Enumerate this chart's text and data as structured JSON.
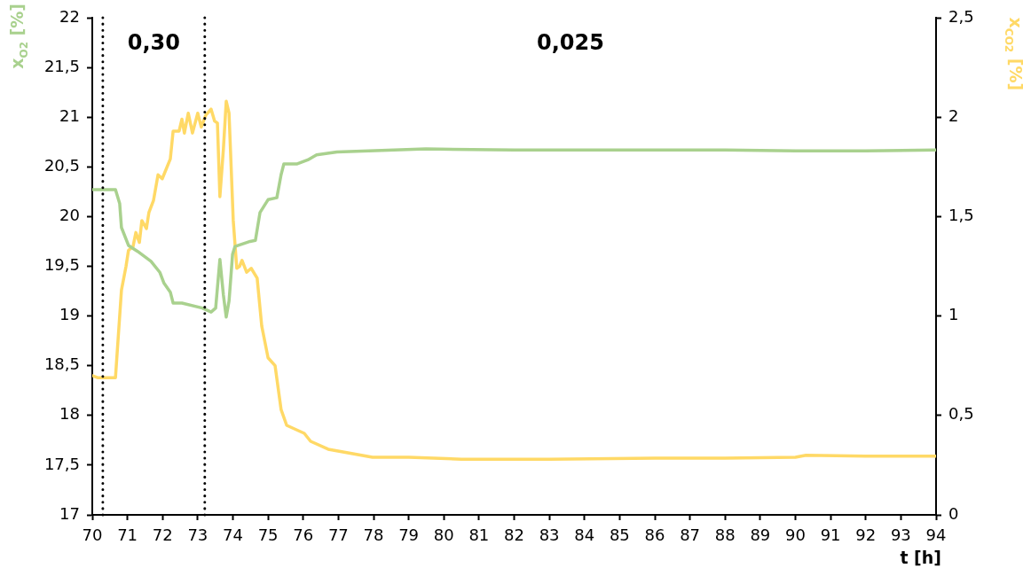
{
  "chart_data": {
    "type": "line",
    "xlabel": "t [h]",
    "ylabel": "x$_{O2}$ [%]",
    "y2label": "x$_{CO2}$ [%]",
    "xlim": [
      70,
      94
    ],
    "xticks": [
      70,
      71,
      72,
      73,
      74,
      75,
      76,
      77,
      78,
      79,
      80,
      81,
      82,
      83,
      84,
      85,
      86,
      87,
      88,
      89,
      90,
      91,
      92,
      93,
      94
    ],
    "ylim": [
      17,
      22
    ],
    "yticks": [
      17,
      {
        "value": 17.5,
        "label": "17,5"
      },
      18,
      {
        "value": 18.5,
        "label": "18,5"
      },
      19,
      {
        "value": 19.5,
        "label": "19,5"
      },
      20,
      {
        "value": 20.5,
        "label": "20,5"
      },
      21,
      {
        "value": 21.5,
        "label": "21,5"
      },
      22
    ],
    "y2lim": [
      0,
      2.5
    ],
    "y2ticks": [
      0,
      {
        "value": 0.5,
        "label": "0,5"
      },
      1,
      {
        "value": 1.5,
        "label": "1,5"
      },
      2,
      {
        "value": 2.5,
        "label": "2,5"
      }
    ],
    "grid": false,
    "legend": false,
    "marker": "none",
    "line_style": "solid",
    "ref_lines": [
      {
        "axis": "x",
        "value": 70.3,
        "color": "#000000",
        "line_style": "dotted"
      },
      {
        "axis": "x",
        "value": 73.2,
        "color": "#000000",
        "line_style": "dotted"
      }
    ],
    "annotations": [
      "0,30",
      "0,025"
    ],
    "series": [
      {
        "color": "#a9d18e",
        "x": [
          70,
          70.66,
          70.78,
          70.83,
          71.03,
          71.29,
          71.67,
          71.92,
          72.04,
          72.22,
          72.3,
          72.55,
          73.13,
          73.38,
          73.51,
          73.63,
          73.73,
          73.81,
          73.89,
          73.99,
          74.06,
          74.49,
          74.64,
          74.77,
          75.0,
          75.25,
          75.37,
          75.45,
          75.83,
          76.13,
          76.38,
          76.96,
          79.49,
          82,
          85,
          88,
          90,
          92,
          94
        ],
        "values": [
          20.27,
          20.27,
          20.13,
          19.89,
          19.71,
          19.65,
          19.55,
          19.44,
          19.33,
          19.24,
          19.13,
          19.13,
          19.08,
          19.04,
          19.08,
          19.57,
          19.21,
          18.99,
          19.15,
          19.62,
          19.7,
          19.75,
          19.76,
          20.04,
          20.17,
          20.19,
          20.42,
          20.53,
          20.53,
          20.57,
          20.62,
          20.65,
          20.68,
          20.67,
          20.67,
          20.67,
          20.66,
          20.66,
          20.67
        ]
      },
      {
        "color": "#ffd966",
        "axis": "y2",
        "x": [
          70,
          70.15,
          70.66,
          70.83,
          70.96,
          71.03,
          71.16,
          71.24,
          71.34,
          71.41,
          71.54,
          71.61,
          71.74,
          71.87,
          71.99,
          72.22,
          72.3,
          72.47,
          72.55,
          72.62,
          72.73,
          72.85,
          73.0,
          73.1,
          73.23,
          73.38,
          73.48,
          73.56,
          73.63,
          73.73,
          73.81,
          73.89,
          74.01,
          74.11,
          74.19,
          74.26,
          74.39,
          74.52,
          74.69,
          74.82,
          75.0,
          75.2,
          75.37,
          75.53,
          76.03,
          76.21,
          76.71,
          77.97,
          79,
          80.5,
          83,
          86,
          88,
          90,
          90.3,
          92,
          94
        ],
        "values": [
          0.7,
          0.69,
          0.69,
          1.13,
          1.25,
          1.33,
          1.35,
          1.42,
          1.37,
          1.48,
          1.44,
          1.52,
          1.58,
          1.71,
          1.69,
          1.79,
          1.93,
          1.93,
          1.99,
          1.92,
          2.02,
          1.92,
          2.02,
          1.95,
          2.01,
          2.04,
          1.98,
          1.97,
          1.6,
          1.84,
          2.08,
          2.02,
          1.48,
          1.24,
          1.25,
          1.28,
          1.22,
          1.24,
          1.19,
          0.95,
          0.79,
          0.75,
          0.53,
          0.45,
          0.41,
          0.37,
          0.33,
          0.29,
          0.29,
          0.28,
          0.28,
          0.285,
          0.285,
          0.29,
          0.3,
          0.295,
          0.295
        ]
      }
    ]
  }
}
